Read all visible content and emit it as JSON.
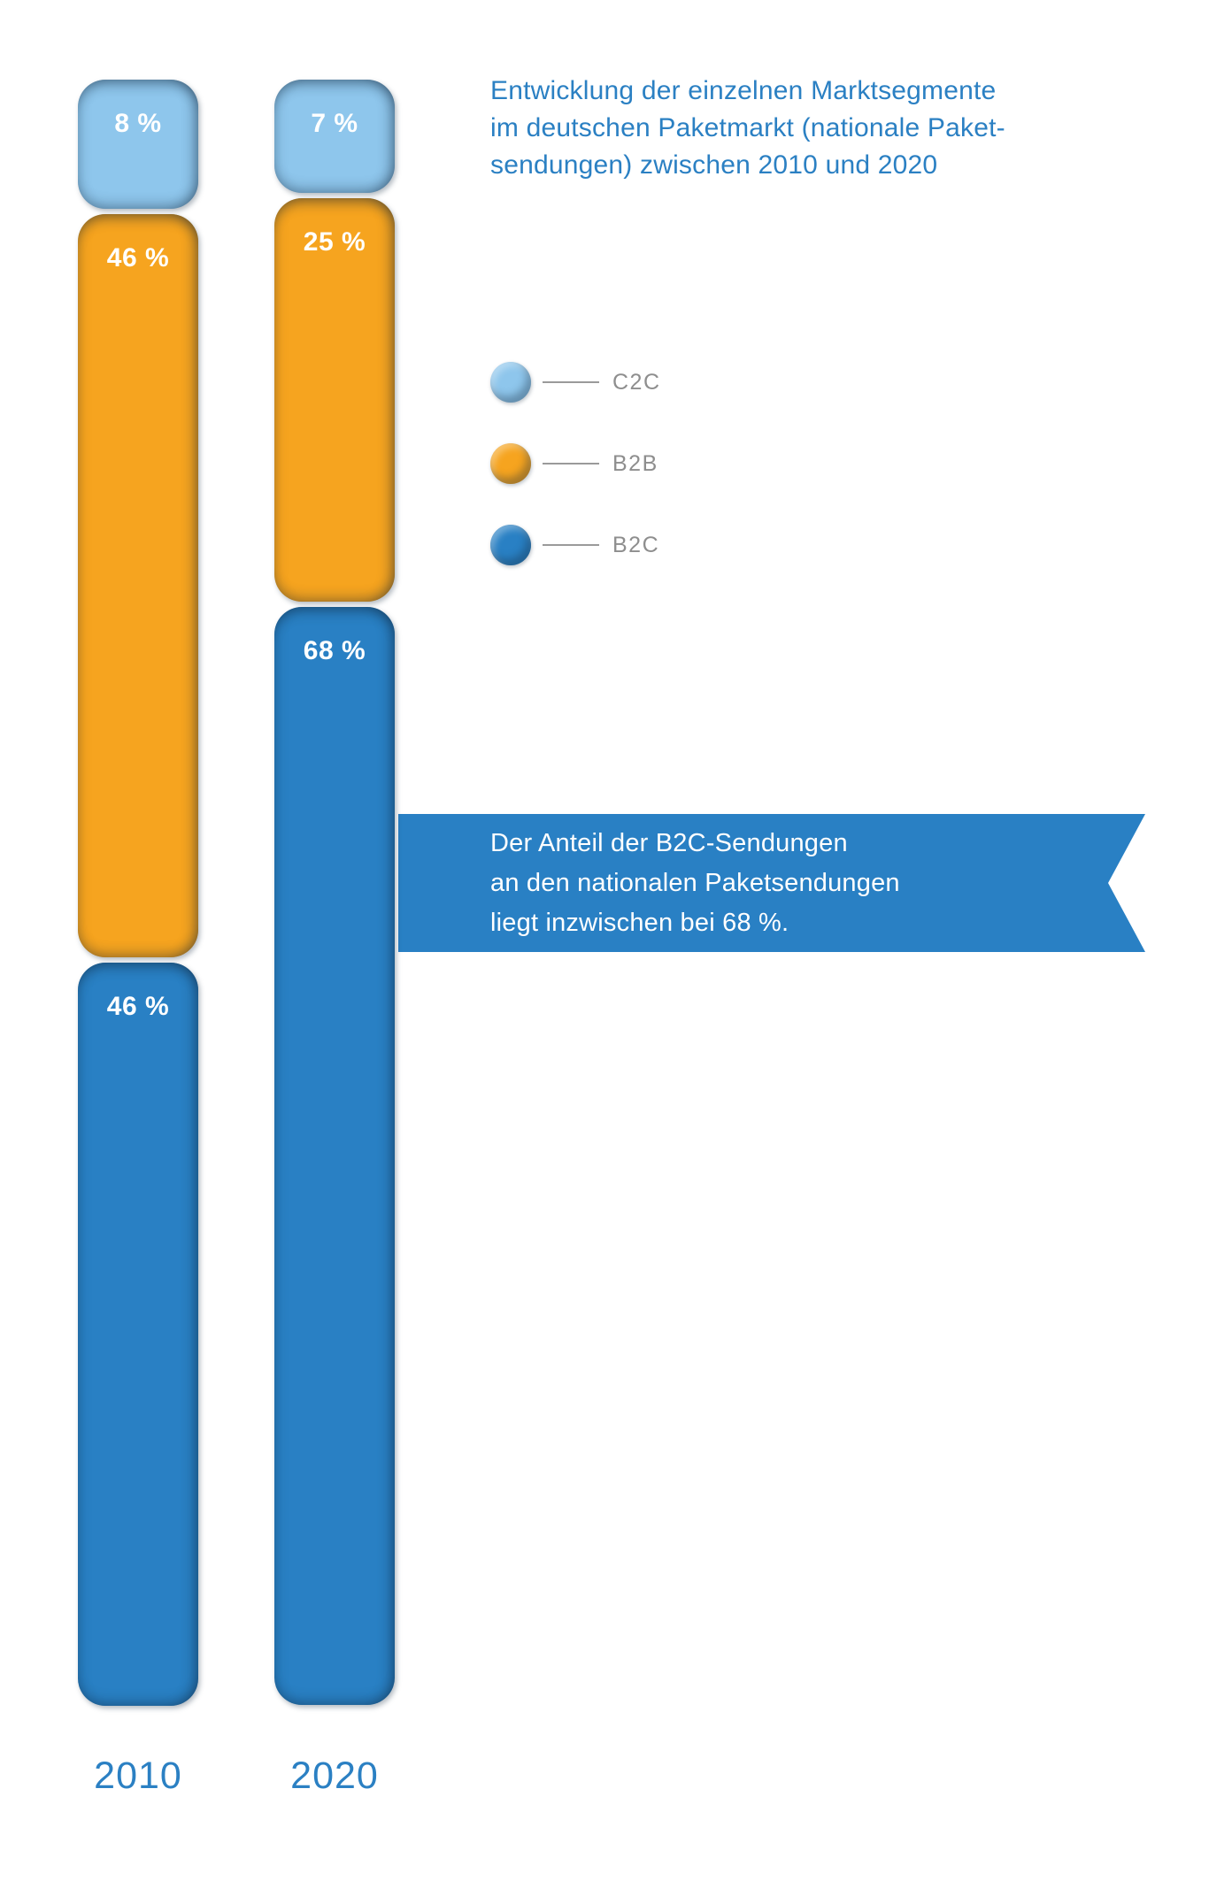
{
  "title": {
    "lines": [
      "Entwicklung der einzelnen Marktsegmente",
      "im deutschen Paketmarkt (nationale Paket-",
      "sendungen) zwischen 2010 und 2020"
    ]
  },
  "callout": {
    "lines": [
      "Der Anteil der B2C-Sendungen",
      "an den nationalen Paketsendungen",
      "liegt inzwischen bei 68 %."
    ]
  },
  "colors": {
    "c2c": "#8ec6ec",
    "b2b": "#f6a41f",
    "b2c": "#2980c4",
    "accent_text": "#2b80c3",
    "legend_label": "#8e8e8e",
    "legend_line": "#9a9a9a",
    "callout_bg": "#2980c4",
    "value_label": "#ffffff"
  },
  "chart_data": {
    "type": "bar",
    "stacked": true,
    "orientation": "vertical",
    "unit": "%",
    "value_range": [
      0,
      100
    ],
    "grid": false,
    "legend_position": "upper-right",
    "categories": [
      "2010",
      "2020"
    ],
    "series": [
      {
        "name": "C2C",
        "color": "#8ec6ec",
        "values": [
          8,
          7
        ],
        "labels": [
          "8 %",
          "7 %"
        ]
      },
      {
        "name": "B2B",
        "color": "#f6a41f",
        "values": [
          46,
          25
        ],
        "labels": [
          "46 %",
          "25 %"
        ]
      },
      {
        "name": "B2C",
        "color": "#2980c4",
        "values": [
          46,
          68
        ],
        "labels": [
          "46 %",
          "68 %"
        ]
      }
    ],
    "title": "Entwicklung der einzelnen Marktsegmente im deutschen Paketmarkt (nationale Paketsendungen) zwischen 2010 und 2020",
    "annotation": "Der Anteil der B2C-Sendungen an den nationalen Paketsendungen liegt inzwischen bei 68 %."
  }
}
